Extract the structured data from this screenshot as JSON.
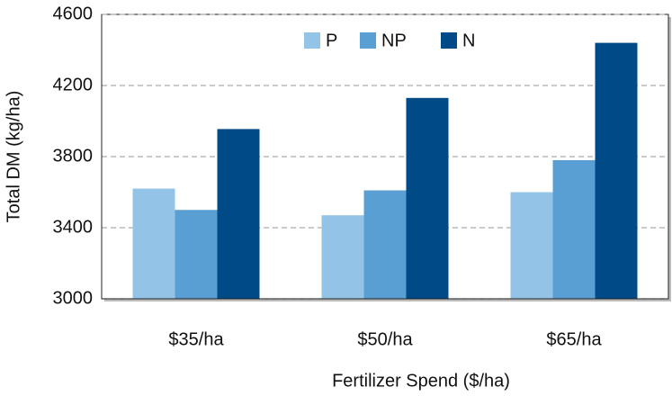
{
  "chart_data": {
    "type": "bar",
    "categories": [
      "$35/ha",
      "$50/ha",
      "$65/ha"
    ],
    "series": [
      {
        "name": "P",
        "color": "#93c4e8",
        "values": [
          3620,
          3470,
          3600
        ]
      },
      {
        "name": "NP",
        "color": "#5a9fd4",
        "values": [
          3500,
          3610,
          3780
        ]
      },
      {
        "name": "N",
        "color": "#004a87",
        "values": [
          3955,
          4130,
          4440
        ]
      }
    ],
    "x_label": "Fertilizer Spend ($/ha)",
    "y_label": "Total DM (kg/ha)",
    "ylim": [
      3000,
      4600
    ],
    "yticks": [
      3000,
      3400,
      3800,
      4200,
      4600
    ],
    "grid": true,
    "legend": "top"
  }
}
